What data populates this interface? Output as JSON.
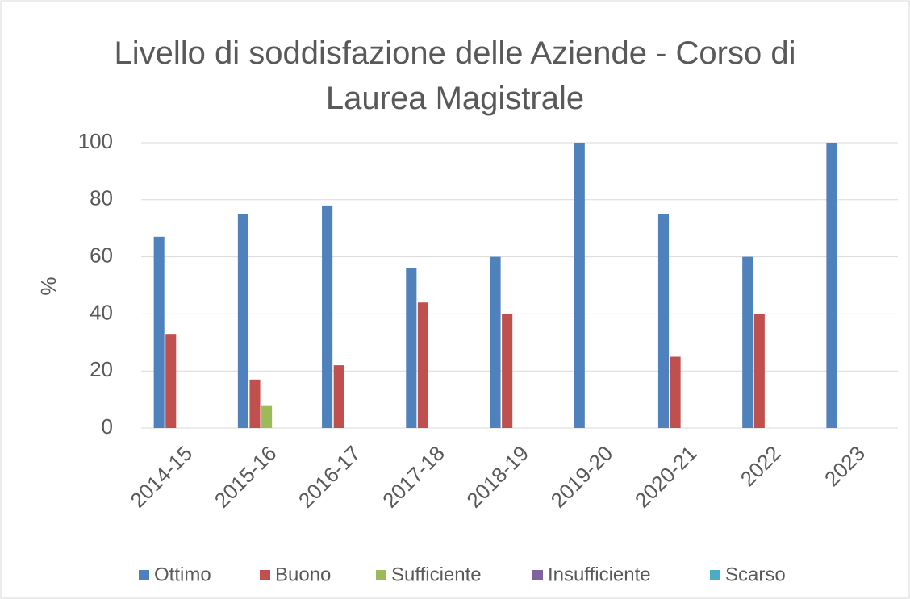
{
  "chart_data": {
    "type": "bar",
    "title": "Livello di soddisfazione delle Aziende - Corso di Laurea Magistrale",
    "ylabel": "%",
    "categories": [
      "2014-15",
      "2015-16",
      "2016-17",
      "2017-18",
      "2018-19",
      "2019-20",
      "2020-21",
      "2022",
      "2023"
    ],
    "series": [
      {
        "name": "Ottimo",
        "color": "#4f81bd",
        "values": [
          67,
          75,
          78,
          56,
          60,
          100,
          75,
          60,
          100
        ]
      },
      {
        "name": "Buono",
        "color": "#c0504d",
        "values": [
          33,
          17,
          22,
          44,
          40,
          0,
          25,
          40,
          0
        ]
      },
      {
        "name": "Sufficiente",
        "color": "#9bbb59",
        "values": [
          0,
          8,
          0,
          0,
          0,
          0,
          0,
          0,
          0
        ]
      },
      {
        "name": "Insufficiente",
        "color": "#8064a2",
        "values": [
          0,
          0,
          0,
          0,
          0,
          0,
          0,
          0,
          0
        ]
      },
      {
        "name": "Scarso",
        "color": "#4bacc6",
        "values": [
          0,
          0,
          0,
          0,
          0,
          0,
          0,
          0,
          0
        ]
      }
    ],
    "ylim": [
      0,
      100
    ],
    "yticks": [
      0,
      20,
      40,
      60,
      80,
      100
    ],
    "grid": true,
    "legend": "bottom"
  }
}
